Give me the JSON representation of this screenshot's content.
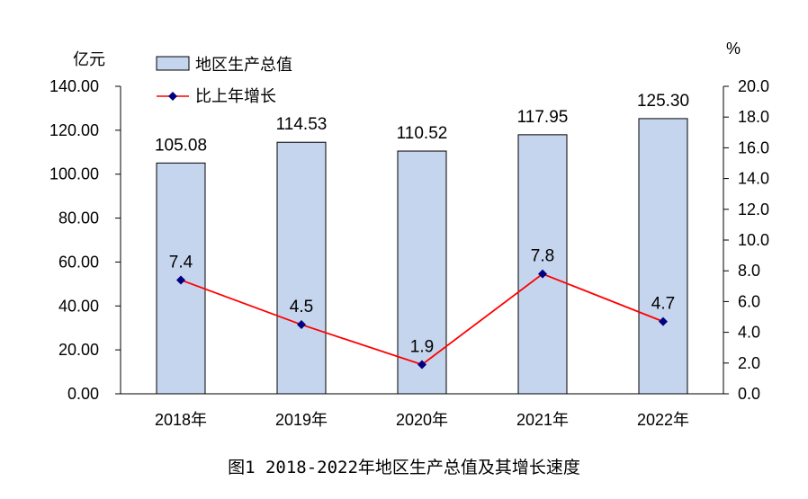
{
  "chart_data": {
    "type": "bar+line",
    "categories": [
      "2018年",
      "2019年",
      "2020年",
      "2021年",
      "2022年"
    ],
    "series": [
      {
        "name": "地区生产总值",
        "type": "bar",
        "axis": "left",
        "values": [
          105.08,
          114.53,
          110.52,
          117.95,
          125.3
        ],
        "labels": [
          "105.08",
          "114.53",
          "110.52",
          "117.95",
          "125.30"
        ],
        "color": "#c5d5ee"
      },
      {
        "name": "比上年增长",
        "type": "line",
        "axis": "right",
        "values": [
          7.4,
          4.5,
          1.9,
          7.8,
          4.7
        ],
        "labels": [
          "7.4",
          "4.5",
          "1.9",
          "7.8",
          "4.7"
        ],
        "color": "#ff0000",
        "marker_color": "#000080"
      }
    ],
    "left_axis": {
      "unit_label": "亿元",
      "ylim": [
        0,
        140
      ],
      "ticks": [
        "0.00",
        "20.00",
        "40.00",
        "60.00",
        "80.00",
        "100.00",
        "120.00",
        "140.00"
      ]
    },
    "right_axis": {
      "unit_label": "%",
      "ylim": [
        0,
        20
      ],
      "ticks": [
        "0.0",
        "2.0",
        "4.0",
        "6.0",
        "8.0",
        "10.0",
        "12.0",
        "14.0",
        "16.0",
        "18.0",
        "20.0"
      ]
    },
    "legend_position": "top-left",
    "grid": false,
    "caption": "图1  2018-2022年地区生产总值及其增长速度"
  }
}
